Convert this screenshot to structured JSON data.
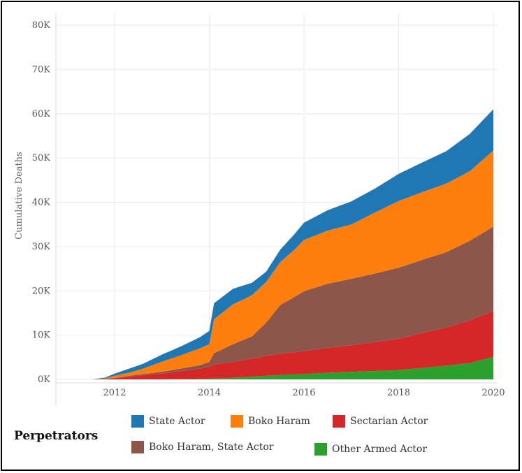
{
  "chart_data": {
    "type": "area",
    "stacked": true,
    "cumulative": true,
    "title": "",
    "ylabel": "Cumulative Deaths",
    "xlabel": "",
    "ylim": [
      0,
      80000
    ],
    "xlim": [
      2010.9,
      2020.2
    ],
    "y_ticks": [
      0,
      10000,
      20000,
      30000,
      40000,
      50000,
      60000,
      70000,
      80000
    ],
    "y_tick_labels": [
      "0K",
      "10K",
      "20K",
      "30K",
      "40K",
      "50K",
      "60K",
      "70K",
      "80K"
    ],
    "x_ticks": [
      2012,
      2014,
      2016,
      2018,
      2020
    ],
    "x_tick_labels": [
      "2012",
      "2014",
      "2016",
      "2018",
      "2020"
    ],
    "grid": true,
    "legend_title": "Perpetrators",
    "legend_position": "bottom",
    "x": [
      2011.5,
      2011.8,
      2012.0,
      2012.3,
      2012.6,
      2013.0,
      2013.4,
      2013.8,
      2014.0,
      2014.1,
      2014.5,
      2014.9,
      2015.2,
      2015.5,
      2015.8,
      2016.0,
      2016.5,
      2017.0,
      2017.5,
      2018.0,
      2018.5,
      2019.0,
      2019.5,
      2020.0
    ],
    "series": [
      {
        "name": "Other Armed Actor",
        "color": "#2ca02c",
        "values": [
          0,
          0,
          0,
          0,
          0,
          0,
          50,
          100,
          150,
          200,
          350,
          600,
          800,
          1000,
          1100,
          1200,
          1500,
          1700,
          1900,
          2100,
          2600,
          3100,
          3700,
          5100
        ]
      },
      {
        "name": "Sectarian Actor",
        "color": "#d62728",
        "values": [
          0,
          100,
          300,
          600,
          900,
          1300,
          1800,
          2300,
          2800,
          3200,
          3600,
          4100,
          4500,
          4800,
          5000,
          5200,
          5600,
          6000,
          6500,
          7100,
          7900,
          8600,
          9600,
          10400
        ]
      },
      {
        "name": "Boko Haram, State Actor",
        "color": "#8c564b",
        "values": [
          0,
          0,
          0,
          200,
          300,
          400,
          600,
          800,
          1000,
          2500,
          4000,
          5000,
          7500,
          11000,
          12500,
          13500,
          14500,
          15000,
          15500,
          16000,
          16500,
          17000,
          18000,
          19000
        ]
      },
      {
        "name": "Boko Haram",
        "color": "#ff7f0e",
        "values": [
          0,
          100,
          500,
          700,
          1200,
          2300,
          3000,
          3800,
          4000,
          7700,
          9000,
          9300,
          9200,
          9700,
          10700,
          11600,
          12000,
          12300,
          13800,
          15100,
          15300,
          15500,
          15700,
          17200
        ]
      },
      {
        "name": "State Actor",
        "color": "#1f77b4",
        "values": [
          0,
          200,
          500,
          900,
          1100,
          1600,
          2000,
          2500,
          3000,
          3600,
          3500,
          2800,
          2300,
          2800,
          3500,
          3900,
          4600,
          5200,
          5400,
          6100,
          6700,
          7300,
          8400,
          9300
        ]
      }
    ]
  },
  "legend": {
    "title": "Perpetrators",
    "items": [
      {
        "label": "State Actor",
        "color": "#1f77b4"
      },
      {
        "label": "Boko Haram",
        "color": "#ff7f0e"
      },
      {
        "label": "Sectarian Actor",
        "color": "#d62728"
      },
      {
        "label": "Boko Haram, State Actor",
        "color": "#8c564b"
      },
      {
        "label": "Other Armed Actor",
        "color": "#2ca02c"
      }
    ]
  }
}
